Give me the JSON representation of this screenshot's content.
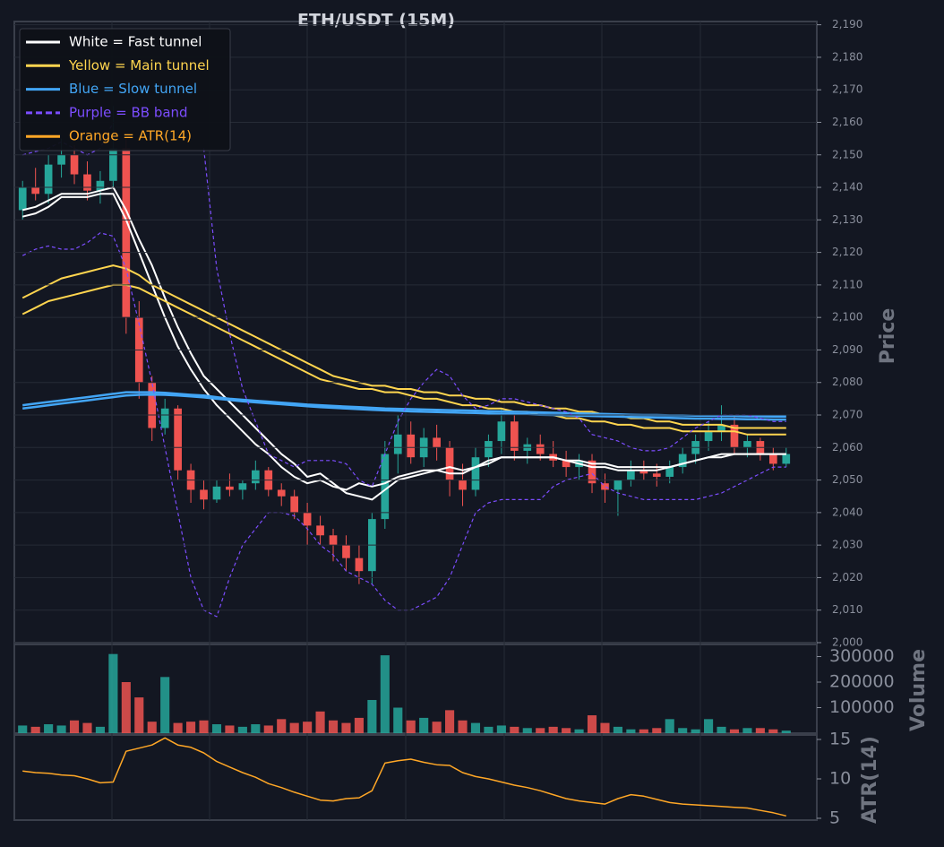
{
  "chart_data": [
    {
      "type": "candlestick",
      "title": "ETH/USDT (15M)",
      "ylabel": "Price",
      "up_color": "#26a69a",
      "down_color": "#ef5350",
      "grid": true,
      "ylim": [
        2000,
        2191
      ],
      "yticks": [
        {
          "value": 2000,
          "label": "2,000"
        },
        {
          "value": 2010,
          "label": "2,010"
        },
        {
          "value": 2020,
          "label": "2,020"
        },
        {
          "value": 2030,
          "label": "2,030"
        },
        {
          "value": 2040,
          "label": "2,040"
        },
        {
          "value": 2050,
          "label": "2,050"
        },
        {
          "value": 2060,
          "label": "2,060"
        },
        {
          "value": 2070,
          "label": "2,070"
        },
        {
          "value": 2080,
          "label": "2,080"
        },
        {
          "value": 2090,
          "label": "2,090"
        },
        {
          "value": 2100,
          "label": "2,100"
        },
        {
          "value": 2110,
          "label": "2,110"
        },
        {
          "value": 2120,
          "label": "2,120"
        },
        {
          "value": 2130,
          "label": "2,130"
        },
        {
          "value": 2140,
          "label": "2,140"
        },
        {
          "value": 2150,
          "label": "2,150"
        },
        {
          "value": 2160,
          "label": "2,160"
        },
        {
          "value": 2170,
          "label": "2,170"
        },
        {
          "value": 2180,
          "label": "2,180"
        },
        {
          "value": 2190,
          "label": "2,190"
        }
      ],
      "open": [
        2133,
        2140,
        2138,
        2147,
        2150,
        2144,
        2139,
        2142,
        2152,
        2100,
        2080,
        2066,
        2072,
        2053,
        2047,
        2044,
        2048,
        2047,
        2049,
        2053,
        2047,
        2045,
        2040,
        2036,
        2033,
        2030,
        2026,
        2022,
        2038,
        2058,
        2064,
        2057,
        2063,
        2060,
        2050,
        2047,
        2057,
        2062,
        2068,
        2059,
        2061,
        2058,
        2056,
        2054,
        2056,
        2049,
        2047,
        2050,
        2053,
        2052,
        2051,
        2054,
        2058,
        2062,
        2065,
        2067,
        2060,
        2062,
        2058,
        2055
      ],
      "high": [
        2142,
        2146,
        2150,
        2155,
        2153,
        2148,
        2145,
        2165,
        2155,
        2105,
        2082,
        2075,
        2073,
        2055,
        2050,
        2050,
        2052,
        2050,
        2056,
        2054,
        2049,
        2047,
        2043,
        2039,
        2035,
        2033,
        2030,
        2040,
        2062,
        2070,
        2068,
        2066,
        2067,
        2062,
        2055,
        2060,
        2064,
        2072,
        2070,
        2063,
        2064,
        2062,
        2059,
        2058,
        2058,
        2052,
        2050,
        2056,
        2056,
        2055,
        2056,
        2060,
        2064,
        2068,
        2073,
        2070,
        2064,
        2063,
        2060,
        2060
      ],
      "low": [
        2130,
        2136,
        2135,
        2143,
        2141,
        2136,
        2135,
        2140,
        2095,
        2075,
        2062,
        2064,
        2050,
        2043,
        2041,
        2043,
        2045,
        2044,
        2047,
        2045,
        2042,
        2038,
        2030,
        2030,
        2025,
        2022,
        2018,
        2018,
        2035,
        2052,
        2055,
        2054,
        2056,
        2045,
        2042,
        2045,
        2054,
        2058,
        2056,
        2055,
        2056,
        2054,
        2051,
        2050,
        2046,
        2043,
        2039,
        2048,
        2050,
        2048,
        2049,
        2052,
        2055,
        2059,
        2062,
        2058,
        2057,
        2056,
        2053,
        2054
      ],
      "close": [
        2140,
        2138,
        2147,
        2150,
        2144,
        2139,
        2142,
        2152,
        2100,
        2080,
        2066,
        2072,
        2053,
        2047,
        2044,
        2048,
        2047,
        2049,
        2053,
        2047,
        2045,
        2040,
        2036,
        2033,
        2030,
        2026,
        2022,
        2038,
        2058,
        2064,
        2057,
        2063,
        2060,
        2050,
        2047,
        2057,
        2062,
        2068,
        2059,
        2061,
        2058,
        2056,
        2054,
        2056,
        2049,
        2047,
        2050,
        2053,
        2052,
        2051,
        2054,
        2058,
        2062,
        2065,
        2067,
        2060,
        2062,
        2058,
        2055,
        2058
      ],
      "series": [
        {
          "name": "White = Fast tunnel",
          "color": "#ffffff",
          "width": 2,
          "values": [
            2133,
            2134,
            2136,
            2138,
            2138,
            2138,
            2139,
            2140,
            2133,
            2124,
            2116,
            2106,
            2097,
            2089,
            2082,
            2078,
            2074,
            2070,
            2066,
            2062,
            2058,
            2055,
            2051,
            2052,
            2049,
            2046,
            2045,
            2044,
            2047,
            2050,
            2051,
            2052,
            2053,
            2054,
            2053,
            2054,
            2055,
            2057,
            2057,
            2057,
            2057,
            2057,
            2056,
            2056,
            2055,
            2055,
            2054,
            2054,
            2054,
            2054,
            2054,
            2055,
            2056,
            2057,
            2058,
            2058,
            2058,
            2058,
            2058,
            2058
          ]
        },
        {
          "color": "#ffffff",
          "width": 2,
          "values": [
            2131,
            2132,
            2134,
            2137,
            2137,
            2137,
            2138,
            2138,
            2130,
            2120,
            2110,
            2100,
            2091,
            2084,
            2078,
            2073,
            2069,
            2065,
            2061,
            2058,
            2054,
            2051,
            2049,
            2050,
            2048,
            2047,
            2049,
            2048,
            2049,
            2051,
            2052,
            2053,
            2053,
            2052,
            2052,
            2054,
            2056,
            2057,
            2057,
            2057,
            2057,
            2057,
            2056,
            2055,
            2054,
            2054,
            2053,
            2053,
            2053,
            2053,
            2054,
            2055,
            2056,
            2057,
            2057,
            2058,
            2058,
            2058,
            2058,
            2058
          ]
        },
        {
          "name": "Yellow = Main tunnel",
          "color": "#ffd54f",
          "width": 2,
          "values": [
            2106,
            2108,
            2110,
            2112,
            2113,
            2114,
            2115,
            2116,
            2115,
            2113,
            2110,
            2108,
            2106,
            2104,
            2102,
            2100,
            2098,
            2096,
            2094,
            2092,
            2090,
            2088,
            2086,
            2084,
            2082,
            2081,
            2080,
            2079,
            2079,
            2078,
            2078,
            2077,
            2077,
            2076,
            2076,
            2075,
            2075,
            2074,
            2074,
            2073,
            2073,
            2072,
            2072,
            2071,
            2071,
            2070,
            2070,
            2069,
            2069,
            2068,
            2068,
            2067,
            2067,
            2067,
            2067,
            2066,
            2066,
            2066,
            2066,
            2066
          ]
        },
        {
          "color": "#ffd54f",
          "width": 2,
          "values": [
            2101,
            2103,
            2105,
            2106,
            2107,
            2108,
            2109,
            2110,
            2110,
            2109,
            2107,
            2105,
            2103,
            2101,
            2099,
            2097,
            2095,
            2093,
            2091,
            2089,
            2087,
            2085,
            2083,
            2081,
            2080,
            2079,
            2078,
            2078,
            2077,
            2077,
            2076,
            2075,
            2075,
            2074,
            2073,
            2073,
            2072,
            2072,
            2071,
            2071,
            2070,
            2070,
            2069,
            2069,
            2068,
            2068,
            2067,
            2067,
            2066,
            2066,
            2066,
            2065,
            2065,
            2065,
            2065,
            2065,
            2064,
            2064,
            2064,
            2064
          ]
        },
        {
          "name": "Blue = Slow tunnel",
          "color": "#42a5f5",
          "width": 2.5,
          "values": [
            2073,
            2073.5,
            2074,
            2074.5,
            2075,
            2075.5,
            2076,
            2076.5,
            2077,
            2077,
            2077,
            2076.8,
            2076.5,
            2076.2,
            2076,
            2075.5,
            2075,
            2074.7,
            2074.4,
            2074.1,
            2073.8,
            2073.5,
            2073.2,
            2073,
            2072.8,
            2072.6,
            2072.4,
            2072.2,
            2072,
            2071.9,
            2071.8,
            2071.7,
            2071.6,
            2071.5,
            2071.4,
            2071.3,
            2071.2,
            2071.1,
            2071,
            2070.9,
            2070.8,
            2070.7,
            2070.6,
            2070.5,
            2070.4,
            2070.3,
            2070.2,
            2070.1,
            2070,
            2070,
            2069.9,
            2069.9,
            2069.8,
            2069.8,
            2069.7,
            2069.7,
            2069.6,
            2069.6,
            2069.5,
            2069.5
          ]
        },
        {
          "color": "#42a5f5",
          "width": 2.5,
          "values": [
            2072,
            2072.5,
            2073,
            2073.5,
            2074,
            2074.5,
            2075,
            2075.5,
            2076,
            2076.2,
            2076.3,
            2076.2,
            2076,
            2075.7,
            2075.4,
            2075,
            2074.6,
            2074.2,
            2073.9,
            2073.6,
            2073.3,
            2073,
            2072.7,
            2072.4,
            2072.2,
            2072,
            2071.8,
            2071.6,
            2071.4,
            2071.3,
            2071.1,
            2071,
            2070.9,
            2070.8,
            2070.7,
            2070.6,
            2070.5,
            2070.4,
            2070.3,
            2070.2,
            2070.1,
            2070,
            2069.9,
            2069.8,
            2069.7,
            2069.6,
            2069.5,
            2069.4,
            2069.3,
            2069.2,
            2069.1,
            2069,
            2068.9,
            2068.9,
            2068.8,
            2068.8,
            2068.7,
            2068.7,
            2068.6,
            2068.6
          ]
        },
        {
          "name": "Purple = BB band",
          "color": "#7c4dff",
          "width": 1.2,
          "dash": true,
          "values": [
            2150,
            2151,
            2152,
            2154,
            2152,
            2150,
            2152,
            2160,
            null,
            null,
            null,
            null,
            null,
            null,
            2152,
            2115,
            2095,
            2078,
            2068,
            2058,
            2056,
            2054,
            2056,
            2056,
            2056,
            2055,
            2050,
            2048,
            2058,
            2068,
            2075,
            2080,
            2084,
            2082,
            2076,
            2072,
            2073,
            2075,
            2075,
            2074,
            2073,
            2072,
            2071,
            2069,
            2064,
            2063,
            2062,
            2060,
            2059,
            2059,
            2060,
            2063,
            2066,
            2068,
            2070,
            2070,
            2070,
            2069,
            2068,
            2068
          ]
        },
        {
          "color": "#7c4dff",
          "width": 1.2,
          "dash": true,
          "values": [
            2119,
            2121,
            2122,
            2121,
            2121,
            2123,
            2126,
            2125,
            2115,
            2098,
            2080,
            2060,
            2040,
            2020,
            2010,
            2008,
            2020,
            2030,
            2035,
            2040,
            2040,
            2039,
            2035,
            2030,
            2027,
            2022,
            2020,
            2018,
            2013,
            2010,
            2010,
            2012,
            2014,
            2020,
            2030,
            2040,
            2043,
            2044,
            2044,
            2044,
            2044,
            2048,
            2050,
            2051,
            2052,
            2048,
            2046,
            2045,
            2044,
            2044,
            2044,
            2044,
            2044,
            2045,
            2046,
            2048,
            2050,
            2052,
            2054,
            2054
          ]
        }
      ]
    },
    {
      "type": "bar",
      "ylabel": "Volume",
      "ylim": [
        0,
        344000
      ],
      "yticks": [
        100000,
        200000,
        300000
      ],
      "values": [
        30000,
        25000,
        35000,
        30000,
        50000,
        40000,
        25000,
        310000,
        200000,
        140000,
        45000,
        220000,
        40000,
        45000,
        50000,
        35000,
        30000,
        25000,
        35000,
        30000,
        55000,
        40000,
        45000,
        85000,
        50000,
        40000,
        60000,
        130000,
        305000,
        100000,
        50000,
        60000,
        45000,
        90000,
        50000,
        40000,
        25000,
        30000,
        25000,
        20000,
        20000,
        25000,
        20000,
        15000,
        70000,
        40000,
        25000,
        15000,
        15000,
        20000,
        55000,
        20000,
        15000,
        55000,
        25000,
        15000,
        20000,
        20000,
        15000,
        10000
      ]
    },
    {
      "type": "line",
      "ylabel": "ATR(14)",
      "ylim": [
        4.77,
        15.57
      ],
      "yticks": [
        5,
        10,
        15
      ],
      "series": [
        {
          "name": "Orange = ATR(14)",
          "color": "#ffa726",
          "width": 1.5,
          "values": [
            11,
            10.8,
            10.7,
            10.5,
            10.4,
            10,
            9.5,
            9.6,
            13.5,
            13.9,
            14.3,
            15.2,
            14.3,
            14,
            13.3,
            12.2,
            11.5,
            10.8,
            10.2,
            9.4,
            8.9,
            8.3,
            7.8,
            7.3,
            7.2,
            7.5,
            7.6,
            8.5,
            12,
            12.3,
            12.5,
            12.1,
            11.8,
            11.7,
            10.8,
            10.3,
            10,
            9.6,
            9.2,
            8.9,
            8.5,
            8,
            7.5,
            7.2,
            7,
            6.8,
            7.5,
            8,
            7.8,
            7.4,
            7,
            6.8,
            6.7,
            6.6,
            6.5,
            6.4,
            6.3,
            6,
            5.7,
            5.3
          ]
        }
      ]
    }
  ]
}
